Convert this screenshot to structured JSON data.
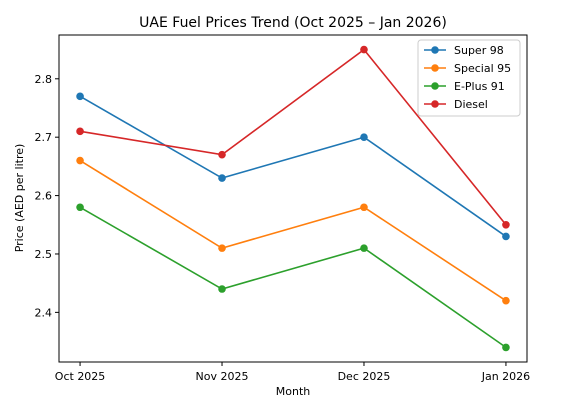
{
  "chart_data": {
    "type": "line",
    "title": "UAE Fuel Prices Trend (Oct 2025 – Jan 2026)",
    "xlabel": "Month",
    "ylabel": "Price (AED per litre)",
    "categories": [
      "Oct 2025",
      "Nov 2025",
      "Dec 2025",
      "Jan 2026"
    ],
    "ylim": [
      2.315,
      2.875
    ],
    "yticks": [
      2.4,
      2.5,
      2.6,
      2.7,
      2.8
    ],
    "grid": false,
    "legend_position": "top-right",
    "series": [
      {
        "name": "Super 98",
        "color": "#1f77b4",
        "values": [
          2.77,
          2.63,
          2.7,
          2.53
        ]
      },
      {
        "name": "Special 95",
        "color": "#ff7f0e",
        "values": [
          2.66,
          2.51,
          2.58,
          2.42
        ]
      },
      {
        "name": "E-Plus 91",
        "color": "#2ca02c",
        "values": [
          2.58,
          2.44,
          2.51,
          2.34
        ]
      },
      {
        "name": "Diesel",
        "color": "#d62728",
        "values": [
          2.71,
          2.67,
          2.85,
          2.55
        ]
      }
    ]
  }
}
